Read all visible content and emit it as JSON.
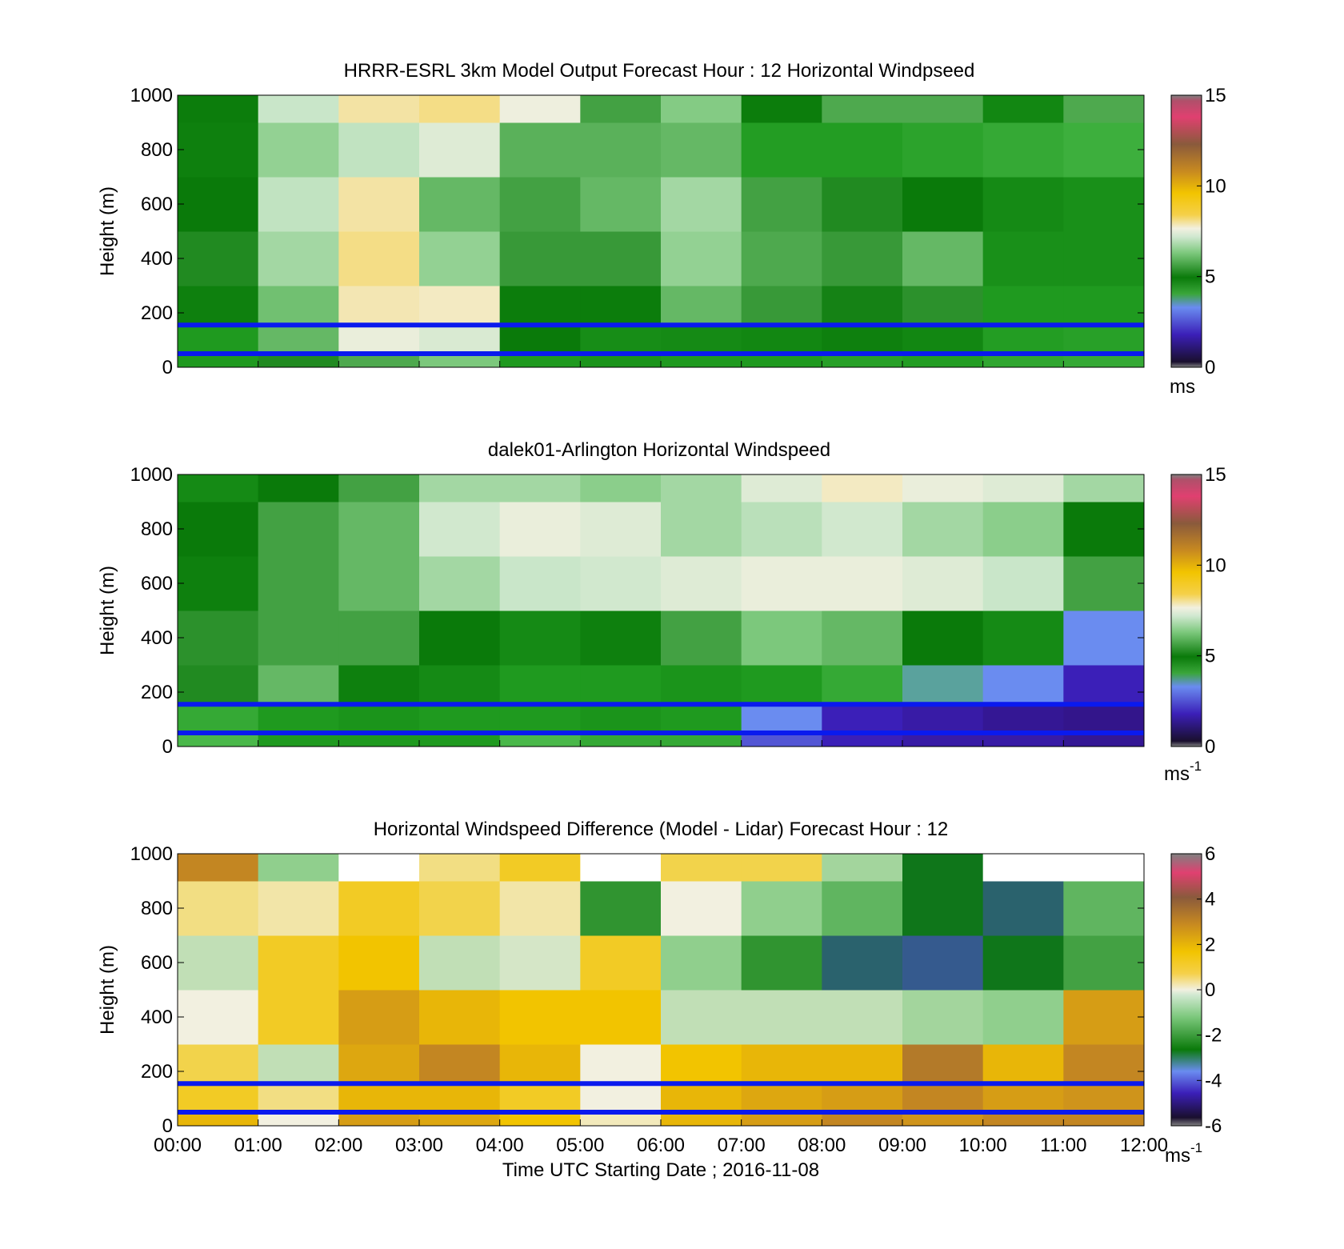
{
  "figure": {
    "xlabel": "Time UTC  Starting Date ; 2016-11-08",
    "x_ticks": [
      "00:00",
      "01:00",
      "02:00",
      "03:00",
      "04:00",
      "05:00",
      "06:00",
      "07:00",
      "08:00",
      "09:00",
      "10:00",
      "11:00",
      "12:00"
    ],
    "colors": {
      "speed_colormap": [
        "#1a0f2e",
        "#2a0a5e",
        "#3b1fb8",
        "#6a8cf0",
        "#4ab84a",
        "#1f9a1f",
        "#0a7a0a",
        "#7cc87c",
        "#c9e6c9",
        "#f2f0e0",
        "#f5d04a",
        "#f2c400",
        "#c88a20",
        "#8a5a3c",
        "#e04070",
        "#808080"
      ],
      "diff_colormap": [
        "#808080",
        "#1a0f2e",
        "#4a4ad0",
        "#0a7a0a",
        "#7cc87c",
        "#f2f0e0",
        "#f2c400",
        "#c88a20",
        "#8a5a3c",
        "#e04070",
        "#808080"
      ],
      "reference_lines": "#0a1aee"
    }
  },
  "chart_data": [
    {
      "type": "heatmap",
      "title": "HRRR-ESRL 3km Model Output   Forecast Hour : 12 Horizontal Windpseed",
      "ylabel": "Height (m)",
      "ylim": [
        0,
        1000
      ],
      "y_ticks": [
        "0",
        "200",
        "400",
        "600",
        "800",
        "1000"
      ],
      "x_range_hours": [
        0,
        12
      ],
      "colorbar": {
        "range": [
          0,
          15
        ],
        "ticks": [
          "0",
          "5",
          "10",
          "15"
        ],
        "unit": "ms"
      },
      "reference_lines_m": [
        155,
        50
      ],
      "x_hours": [
        0,
        1,
        2,
        3,
        4,
        5,
        6,
        7,
        8,
        9,
        10,
        11
      ],
      "height_bands_m": [
        [
          0,
          60
        ],
        [
          60,
          160
        ],
        [
          160,
          300
        ],
        [
          300,
          500
        ],
        [
          500,
          700
        ],
        [
          700,
          900
        ],
        [
          900,
          1000
        ]
      ],
      "values": [
        [
          5.0,
          6.2,
          6.6,
          7.0,
          5.0,
          5.2,
          5.0,
          5.0,
          4.8,
          4.9,
          4.6,
          4.5
        ],
        [
          5.0,
          6.8,
          8.8,
          8.4,
          6.0,
          5.4,
          5.5,
          5.6,
          5.8,
          5.6,
          4.9,
          4.8
        ],
        [
          5.8,
          6.9,
          9.3,
          9.2,
          5.9,
          5.9,
          6.8,
          6.4,
          6.1,
          6.3,
          5.0,
          5.0
        ],
        [
          6.2,
          7.5,
          9.6,
          7.3,
          6.4,
          6.4,
          7.3,
          6.6,
          6.4,
          6.8,
          5.3,
          5.3
        ],
        [
          6.0,
          7.9,
          9.4,
          6.8,
          6.5,
          6.8,
          7.5,
          6.5,
          6.2,
          6.0,
          5.5,
          5.3
        ],
        [
          5.8,
          7.3,
          7.9,
          8.5,
          6.7,
          6.7,
          6.8,
          4.9,
          4.9,
          4.7,
          4.5,
          4.3
        ],
        [
          5.9,
          8.0,
          9.4,
          9.6,
          8.9,
          6.5,
          7.1,
          5.9,
          6.6,
          6.6,
          5.6,
          6.6
        ]
      ]
    },
    {
      "type": "heatmap",
      "title": "dalek01-Arlington  Horizontal Windspeed",
      "ylabel": "Height (m)",
      "ylim": [
        0,
        1000
      ],
      "y_ticks": [
        "0",
        "200",
        "400",
        "600",
        "800",
        "1000"
      ],
      "x_range_hours": [
        0,
        12
      ],
      "colorbar": {
        "range": [
          0,
          15
        ],
        "ticks": [
          "0",
          "5",
          "10",
          "15"
        ],
        "unit": "ms",
        "unit_exponent": "-1"
      },
      "reference_lines_m": [
        155,
        50
      ],
      "x_hours": [
        0,
        1,
        2,
        3,
        4,
        5,
        6,
        7,
        8,
        9,
        10,
        11
      ],
      "height_bands_m": [
        [
          0,
          60
        ],
        [
          60,
          160
        ],
        [
          160,
          300
        ],
        [
          300,
          500
        ],
        [
          500,
          700
        ],
        [
          700,
          900
        ],
        [
          900,
          1000
        ]
      ],
      "values": [
        [
          4.0,
          5.0,
          5.0,
          5.0,
          4.0,
          4.5,
          4.5,
          2.5,
          2.0,
          1.8,
          1.8,
          1.6
        ],
        [
          4.5,
          5.0,
          5.2,
          5.0,
          5.0,
          5.2,
          5.0,
          3.0,
          2.0,
          1.8,
          1.6,
          1.5
        ],
        [
          6.2,
          6.8,
          5.8,
          5.5,
          5.0,
          5.0,
          5.2,
          5.0,
          4.5,
          3.5,
          3.0,
          2.0
        ],
        [
          6.3,
          6.5,
          6.5,
          6.0,
          5.5,
          5.8,
          6.5,
          7.0,
          6.8,
          6.0,
          5.5,
          3.0
        ],
        [
          5.8,
          6.5,
          6.8,
          7.5,
          8.0,
          8.2,
          8.5,
          8.8,
          8.8,
          8.5,
          8.0,
          6.5
        ],
        [
          6.0,
          6.5,
          6.8,
          8.2,
          8.8,
          8.5,
          7.5,
          7.8,
          8.2,
          7.5,
          7.2,
          6.0
        ],
        [
          5.5,
          6.0,
          6.5,
          7.5,
          7.5,
          7.2,
          7.5,
          8.5,
          9.2,
          8.8,
          8.5,
          7.5
        ]
      ]
    },
    {
      "type": "heatmap",
      "title": "Horizontal Windspeed Difference (Model - Lidar) Forecast Hour : 12",
      "ylabel": "Height (m)",
      "ylim": [
        0,
        1000
      ],
      "y_ticks": [
        "0",
        "200",
        "400",
        "600",
        "800",
        "1000"
      ],
      "x_range_hours": [
        0,
        12
      ],
      "colorbar": {
        "range": [
          -6,
          6
        ],
        "ticks": [
          "-6",
          "-4",
          "-2",
          "0",
          "2",
          "4",
          "6"
        ],
        "unit": "ms",
        "unit_exponent": "-1"
      },
      "reference_lines_m": [
        155,
        50
      ],
      "x_hours": [
        0,
        1,
        2,
        3,
        4,
        5,
        6,
        7,
        8,
        9,
        10,
        11
      ],
      "height_bands_m": [
        [
          0,
          60
        ],
        [
          60,
          160
        ],
        [
          160,
          300
        ],
        [
          300,
          500
        ],
        [
          500,
          700
        ],
        [
          700,
          900
        ],
        [
          900,
          1000
        ]
      ],
      "values": [
        [
          1.5,
          0.0,
          2.0,
          1.8,
          1.2,
          0.2,
          1.5,
          2.0,
          2.5,
          2.2,
          2.5,
          2.5
        ],
        [
          1.0,
          0.5,
          1.5,
          1.5,
          1.0,
          0.0,
          1.5,
          1.8,
          2.0,
          2.5,
          2.0,
          2.2
        ],
        [
          0.8,
          -0.5,
          1.8,
          2.5,
          1.5,
          0.0,
          1.2,
          1.5,
          1.5,
          2.8,
          1.5,
          2.5
        ],
        [
          0.0,
          1.0,
          2.0,
          1.5,
          1.2,
          1.2,
          -0.5,
          -0.5,
          -0.5,
          -0.8,
          -1.0,
          2.0
        ],
        [
          -0.5,
          1.0,
          1.2,
          -0.5,
          -0.3,
          1.0,
          -1.0,
          -2.0,
          -3.0,
          -3.2,
          -2.5,
          -1.8
        ],
        [
          0.5,
          0.3,
          1.0,
          0.8,
          0.3,
          -2.0,
          0.0,
          -1.0,
          -1.5,
          -2.5,
          -3.0,
          -1.5
        ],
        [
          2.5,
          -1.0,
          null,
          0.5,
          1.0,
          null,
          0.8,
          0.8,
          -0.8,
          -2.5,
          null,
          null
        ]
      ]
    }
  ]
}
